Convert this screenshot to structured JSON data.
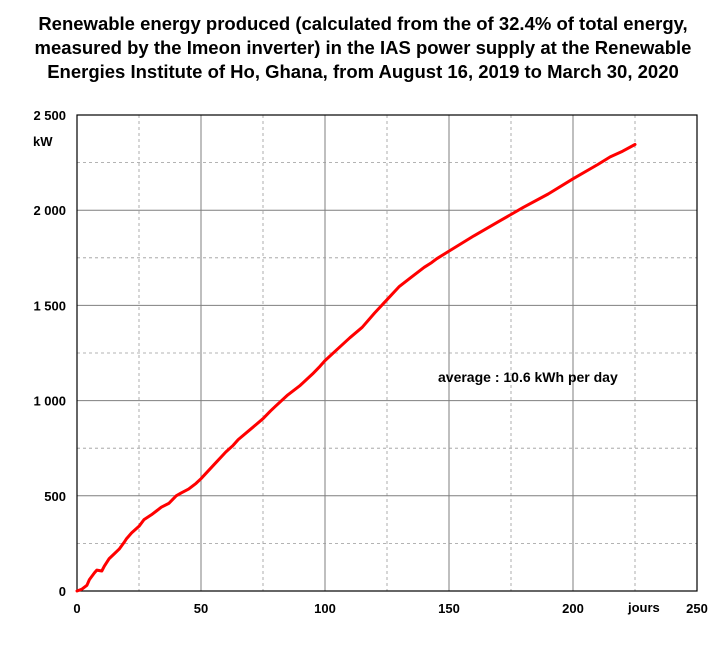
{
  "chart_data": {
    "type": "line",
    "title_lines": [
      "Renewable energy produced (calculated from the of 32.4% of total energy,",
      "measured by the Imeon inverter) in the IAS  power supply at the Renewable",
      "Energies Institute of Ho, Ghana, from August 16, 2019  to March 30, 2020"
    ],
    "xlabel": "jours",
    "ylabel": "kW",
    "xlim": [
      0,
      250
    ],
    "ylim": [
      0,
      2500
    ],
    "x_ticks": [
      0,
      50,
      100,
      150,
      200,
      250
    ],
    "y_ticks": [
      0,
      500,
      1000,
      1500,
      2000,
      2500
    ],
    "x_tick_labels": [
      "0",
      "50",
      "100",
      "150",
      "200",
      "250"
    ],
    "y_tick_labels": [
      "0",
      "500",
      "1 000",
      "1 500",
      "2 000",
      "2 500"
    ],
    "grid": true,
    "annotation": "average : 10.6 kWh per day",
    "series_color": "#ff0000",
    "series": [
      {
        "x": [
          0,
          2,
          4,
          5,
          7,
          8,
          10,
          11,
          13,
          15,
          17,
          19,
          20,
          22,
          25,
          27,
          30,
          32,
          34,
          37,
          40,
          42,
          45,
          48,
          50,
          55,
          60,
          63,
          65,
          70,
          75,
          78,
          80,
          85,
          90,
          95,
          98,
          100,
          105,
          110,
          115,
          120,
          125,
          130,
          135,
          140,
          143,
          145,
          150,
          160,
          170,
          180,
          190,
          200,
          210,
          215,
          220,
          225
        ],
        "y": [
          0,
          10,
          30,
          60,
          95,
          110,
          105,
          130,
          170,
          195,
          220,
          255,
          275,
          305,
          340,
          375,
          400,
          420,
          440,
          460,
          500,
          515,
          535,
          565,
          590,
          660,
          730,
          765,
          795,
          850,
          905,
          945,
          970,
          1030,
          1080,
          1140,
          1180,
          1210,
          1270,
          1330,
          1385,
          1460,
          1530,
          1600,
          1650,
          1700,
          1725,
          1745,
          1785,
          1865,
          1940,
          2015,
          2085,
          2165,
          2240,
          2280,
          2310,
          2345
        ]
      }
    ]
  }
}
